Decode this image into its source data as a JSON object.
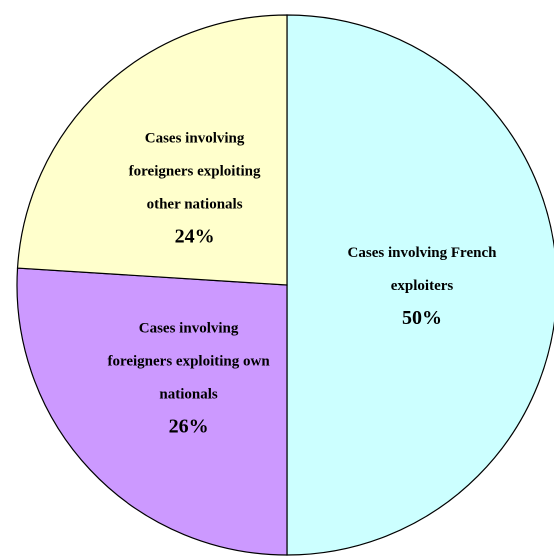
{
  "chart_data": {
    "type": "pie",
    "categories": [
      "Cases involving French exploiters",
      "Cases involving foreigners exploiting own nationals",
      "Cases involving foreigners exploiting other nationals"
    ],
    "values": [
      50,
      26,
      24
    ],
    "value_labels": [
      "50%",
      "26%",
      "24%"
    ],
    "colors": [
      "#ccffff",
      "#cc99ff",
      "#ffffcc"
    ]
  }
}
